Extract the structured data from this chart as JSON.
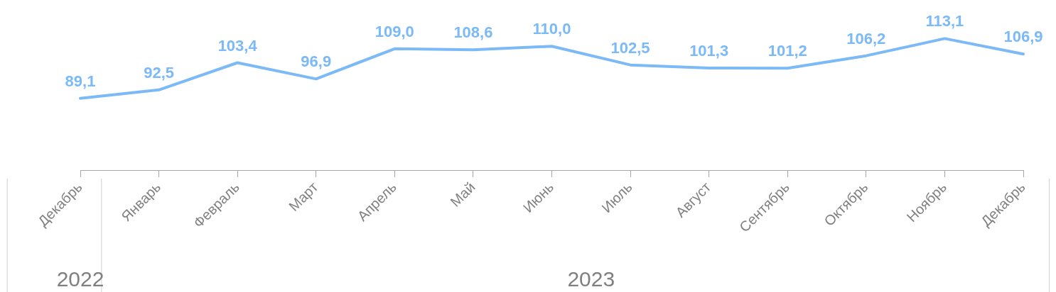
{
  "chart_data": {
    "type": "line",
    "categories": [
      "Декабрь",
      "Январь",
      "Февраль",
      "Март",
      "Апрель",
      "Май",
      "Июнь",
      "Июль",
      "Август",
      "Сентябрь",
      "Октябрь",
      "Ноябрь",
      "Декабрь"
    ],
    "series": [
      {
        "color": "#7cb9f7",
        "values": [
          89.1,
          92.5,
          103.4,
          96.9,
          109.0,
          108.6,
          110.0,
          102.5,
          101.3,
          101.2,
          106.2,
          113.1,
          106.9
        ],
        "value_labels": [
          "89,1",
          "92,5",
          "103,4",
          "96,9",
          "109,0",
          "108,6",
          "110,0",
          "102,5",
          "101,3",
          "101,2",
          "106,2",
          "113,1",
          "106,9"
        ]
      }
    ],
    "annotations": [
      "2022",
      "2023"
    ],
    "marker": "none",
    "line_style": "solid",
    "grid": false,
    "legend": false,
    "tick_labels": "x"
  }
}
